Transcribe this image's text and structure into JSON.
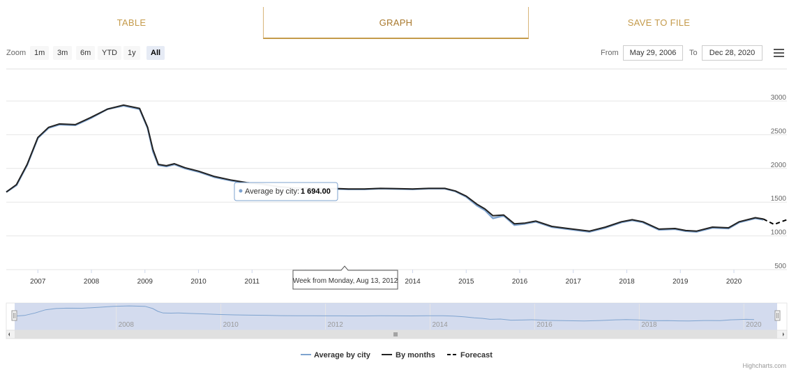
{
  "tabs": [
    {
      "label": "TABLE"
    },
    {
      "label": "GRAPH"
    },
    {
      "label": "SAVE TO FILE"
    }
  ],
  "toolbar": {
    "zoom_label": "Zoom",
    "ranges": [
      "1m",
      "3m",
      "6m",
      "YTD",
      "1y",
      "All"
    ],
    "selected_range": "All",
    "from_label": "From",
    "from_value": "May 29, 2006",
    "to_label": "To",
    "to_value": "Dec 28, 2020"
  },
  "tooltip": {
    "series_label": "Average by city:",
    "value": "1 694.00"
  },
  "crosshair_label": "Week from Monday, Aug 13, 2012",
  "credits": "Highcharts.com",
  "navigator": {
    "labels": [
      "2008",
      "2010",
      "2012",
      "2014",
      "2016",
      "2018",
      "2020"
    ]
  },
  "colors": {
    "accent": "#c49a4a",
    "average": "#7ea3cf",
    "months": "#222222",
    "forecast": "#000000"
  },
  "chart_data": {
    "type": "line",
    "x_axis_labels": [
      "2007",
      "2008",
      "2009",
      "2010",
      "2011",
      "2012",
      "2013",
      "2014",
      "2015",
      "2016",
      "2017",
      "2018",
      "2019",
      "2020"
    ],
    "y_axis_labels": [
      "500",
      "1000",
      "1500",
      "2000",
      "2500",
      "3000"
    ],
    "ylim": [
      500,
      3000
    ],
    "xlim": [
      2006.41,
      2020.99
    ],
    "legend": {
      "placement": "bottom-center"
    },
    "series": [
      {
        "name": "Average by city",
        "color": "#7ea3cf",
        "x": [
          2006.41,
          2006.6,
          2006.8,
          2007.0,
          2007.2,
          2007.4,
          2007.7,
          2008.0,
          2008.3,
          2008.6,
          2008.9,
          2009.05,
          2009.15,
          2009.25,
          2009.4,
          2009.55,
          2009.75,
          2010.0,
          2010.3,
          2010.6,
          2010.9,
          2011.2,
          2011.5,
          2011.8,
          2012.1,
          2012.4,
          2012.62,
          2012.8,
          2013.1,
          2013.4,
          2013.7,
          2014.0,
          2014.3,
          2014.6,
          2014.8,
          2015.0,
          2015.2,
          2015.35,
          2015.5,
          2015.7,
          2015.9,
          2016.1,
          2016.3,
          2016.6,
          2016.9,
          2017.1,
          2017.3,
          2017.6,
          2017.9,
          2018.1,
          2018.3,
          2018.6,
          2018.9,
          2019.1,
          2019.3,
          2019.6,
          2019.9,
          2020.1,
          2020.4,
          2020.55
        ],
        "y": [
          1650,
          1750,
          2050,
          2450,
          2600,
          2650,
          2640,
          2750,
          2880,
          2930,
          2880,
          2600,
          2250,
          2050,
          2030,
          2060,
          2000,
          1950,
          1870,
          1820,
          1780,
          1760,
          1720,
          1700,
          1700,
          1695,
          1694,
          1690,
          1690,
          1700,
          1695,
          1690,
          1700,
          1700,
          1660,
          1580,
          1450,
          1380,
          1260,
          1300,
          1160,
          1180,
          1210,
          1130,
          1100,
          1080,
          1060,
          1120,
          1200,
          1230,
          1200,
          1090,
          1100,
          1070,
          1060,
          1120,
          1110,
          1200,
          1260,
          1240
        ]
      },
      {
        "name": "By months",
        "color": "#222222",
        "x": [
          2006.41,
          2006.6,
          2006.8,
          2007.0,
          2007.2,
          2007.4,
          2007.7,
          2008.0,
          2008.3,
          2008.6,
          2008.9,
          2009.05,
          2009.15,
          2009.25,
          2009.4,
          2009.55,
          2009.75,
          2010.0,
          2010.3,
          2010.6,
          2010.9,
          2011.2,
          2011.5,
          2011.8,
          2012.1,
          2012.4,
          2012.62,
          2012.8,
          2013.1,
          2013.4,
          2013.7,
          2014.0,
          2014.3,
          2014.6,
          2014.8,
          2015.0,
          2015.2,
          2015.35,
          2015.5,
          2015.7,
          2015.9,
          2016.1,
          2016.3,
          2016.6,
          2016.9,
          2017.1,
          2017.3,
          2017.6,
          2017.9,
          2018.1,
          2018.3,
          2018.6,
          2018.9,
          2019.1,
          2019.3,
          2019.6,
          2019.9,
          2020.1,
          2020.4,
          2020.55
        ],
        "y": [
          1650,
          1760,
          2060,
          2460,
          2610,
          2660,
          2650,
          2760,
          2880,
          2940,
          2890,
          2610,
          2280,
          2060,
          2040,
          2070,
          2010,
          1960,
          1880,
          1830,
          1790,
          1770,
          1730,
          1710,
          1710,
          1700,
          1700,
          1695,
          1695,
          1705,
          1700,
          1695,
          1705,
          1705,
          1665,
          1590,
          1470,
          1400,
          1300,
          1310,
          1180,
          1190,
          1220,
          1140,
          1110,
          1090,
          1070,
          1130,
          1210,
          1240,
          1210,
          1100,
          1110,
          1080,
          1070,
          1130,
          1120,
          1210,
          1270,
          1250
        ]
      },
      {
        "name": "Forecast",
        "color": "#000000",
        "x": [
          2020.55,
          2020.75,
          2020.99
        ],
        "y": [
          1250,
          1170,
          1240
        ]
      }
    ]
  }
}
